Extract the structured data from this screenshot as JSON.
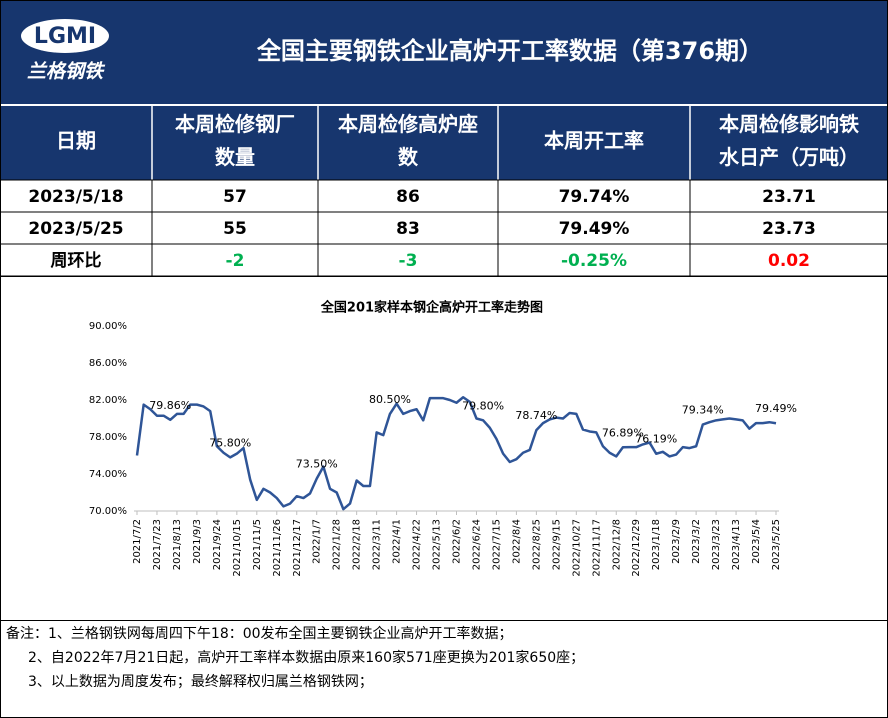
{
  "header": {
    "logo_mark": "LGMI",
    "logo_name": "兰格钢铁",
    "title": "全国主要钢铁企业高炉开工率数据（第376期）"
  },
  "table": {
    "columns": [
      [
        "日期"
      ],
      [
        "本周检修钢厂",
        "数量"
      ],
      [
        "本周检修高炉座",
        "数"
      ],
      [
        "本周开工率"
      ],
      [
        "本周检修影响铁",
        "水日产（万吨）"
      ]
    ],
    "rows": [
      [
        "2023/5/18",
        "57",
        "86",
        "79.74%",
        "23.71"
      ],
      [
        "2023/5/25",
        "55",
        "83",
        "79.49%",
        "23.73"
      ]
    ],
    "change_row": {
      "label": "周环比",
      "cells": [
        "-2",
        "-3",
        "-0.25%",
        "0.02"
      ],
      "colors": [
        "#00b050",
        "#00b050",
        "#00b050",
        "#ff0000"
      ]
    }
  },
  "chart_data": {
    "type": "line",
    "title": "全国201家样本钢企高炉开工率走势图",
    "color": "#2f5597",
    "categories": [
      "2021/7/2",
      null,
      null,
      "2021/7/23",
      null,
      null,
      "2021/8/13",
      null,
      null,
      "2021/9/3",
      null,
      null,
      "2021/9/24",
      null,
      null,
      "2021/10/15",
      null,
      null,
      "2021/11/5",
      null,
      null,
      "2021/11/26",
      null,
      null,
      "2021/12/17",
      null,
      null,
      "2022/1/7",
      null,
      null,
      "2022/1/28",
      null,
      null,
      "2022/2/18",
      null,
      null,
      "2022/3/11",
      null,
      null,
      "2022/4/1",
      null,
      null,
      "2022/4/22",
      null,
      null,
      "2022/5/13",
      null,
      null,
      "2022/6/2",
      null,
      null,
      "2022/6/24",
      null,
      null,
      "2022/7/15",
      null,
      null,
      "2022/8/4",
      null,
      null,
      "2022/8/25",
      null,
      null,
      "2022/9/15",
      null,
      null,
      "2022/10/27",
      null,
      null,
      "2022/11/17",
      null,
      null,
      "2022/12/8",
      null,
      null,
      "2022/12/29",
      null,
      null,
      "2023/1/18",
      null,
      null,
      "2023/2/9",
      null,
      null,
      "2023/3/2",
      null,
      null,
      "2023/3/23",
      null,
      null,
      "2023/4/13",
      null,
      null,
      "2023/5/4",
      null,
      null,
      "2023/5/25"
    ],
    "values": [
      76.0,
      81.5,
      81.0,
      80.3,
      80.3,
      79.86,
      80.5,
      80.5,
      81.5,
      81.5,
      81.3,
      80.8,
      77.0,
      76.3,
      75.8,
      76.2,
      76.8,
      73.4,
      71.2,
      72.4,
      72.0,
      71.4,
      70.5,
      70.8,
      71.6,
      71.4,
      71.9,
      73.5,
      74.8,
      72.4,
      72.0,
      70.2,
      70.8,
      73.3,
      72.7,
      72.7,
      78.5,
      78.2,
      80.5,
      81.6,
      80.5,
      80.8,
      81.0,
      79.8,
      82.2,
      82.2,
      82.2,
      82.0,
      81.7,
      82.3,
      81.8,
      80.0,
      79.8,
      79.0,
      77.8,
      76.2,
      75.3,
      75.6,
      76.3,
      76.6,
      78.74,
      79.5,
      79.9,
      80.1,
      80.0,
      80.6,
      80.5,
      78.8,
      78.6,
      78.5,
      77.0,
      76.3,
      75.9,
      76.89,
      76.9,
      76.9,
      77.2,
      77.4,
      76.19,
      76.4,
      75.9,
      76.1,
      76.9,
      76.8,
      77.0,
      79.34,
      79.6,
      79.8,
      79.9,
      80.0,
      79.9,
      79.8,
      78.9,
      79.5,
      79.5,
      79.6,
      79.49
    ],
    "value_labels": [
      null,
      null,
      null,
      null,
      null,
      "79.86%",
      null,
      null,
      null,
      null,
      null,
      null,
      null,
      null,
      "75.80%",
      null,
      null,
      null,
      null,
      null,
      null,
      null,
      null,
      null,
      null,
      null,
      null,
      "73.50%",
      null,
      null,
      null,
      null,
      null,
      null,
      null,
      null,
      null,
      null,
      "80.50%",
      null,
      null,
      null,
      null,
      null,
      null,
      null,
      null,
      null,
      null,
      null,
      null,
      null,
      "79.80%",
      null,
      null,
      null,
      null,
      null,
      null,
      null,
      "78.74%",
      null,
      null,
      null,
      null,
      null,
      null,
      null,
      null,
      null,
      null,
      null,
      null,
      "76.89%",
      null,
      null,
      null,
      null,
      "76.19%",
      null,
      null,
      null,
      null,
      null,
      null,
      "79.34%",
      null,
      null,
      null,
      null,
      null,
      null,
      null,
      null,
      null,
      null,
      "79.49%"
    ],
    "ylim": [
      70,
      90
    ],
    "yticks": [
      {
        "value": 70,
        "label": "70.00%"
      },
      {
        "value": 74,
        "label": "74.00%"
      },
      {
        "value": 78,
        "label": "78.00%"
      },
      {
        "value": 82,
        "label": "82.00%"
      },
      {
        "value": 86,
        "label": "86.00%"
      },
      {
        "value": 90,
        "label": "90.00%"
      }
    ]
  },
  "notes": [
    "备注：1、兰格钢铁网每周四下午18：00发布全国主要钢铁企业高炉开工率数据；",
    "2、自2022年7月21日起，高炉开工率样本数据由原来160家571座更换为201家650座；",
    "3、以上数据为周度发布；最终解释权归属兰格钢铁网；"
  ]
}
